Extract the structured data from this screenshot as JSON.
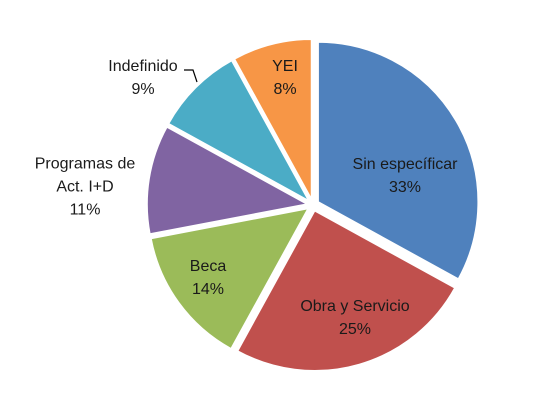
{
  "chart_data": {
    "type": "pie",
    "categories": [
      "Sin específicar",
      "Obra y Servicio",
      "Beca",
      "Programas de Act. I+D",
      "Indefinido",
      "YEI"
    ],
    "values": [
      33,
      25,
      14,
      11,
      9,
      8
    ],
    "value_labels": [
      "33%",
      "25%",
      "14%",
      "11%",
      "9%",
      "8%"
    ],
    "colors": [
      "#4f81bd",
      "#c0504d",
      "#9bbb59",
      "#8064a2",
      "#4bacc6",
      "#f79646"
    ]
  }
}
